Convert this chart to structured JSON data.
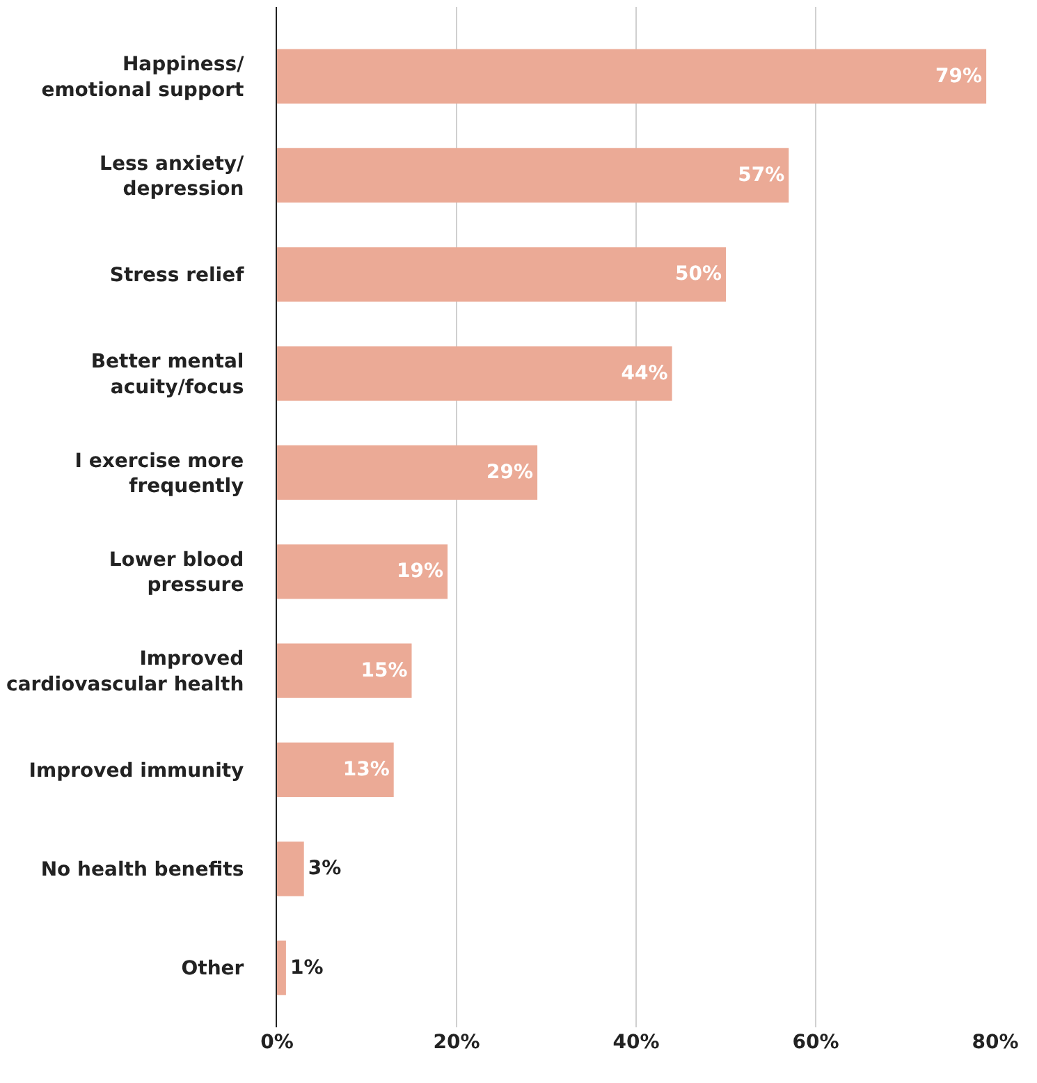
{
  "chart_data": {
    "type": "bar",
    "orientation": "horizontal",
    "categories": [
      "Happiness/\nemotional support",
      "Less anxiety/\ndepression",
      "Stress relief",
      "Better mental\nacuity/focus",
      "I exercise more\nfrequently",
      "Lower blood\npressure",
      "Improved\ncardiovascular health",
      "Improved immunity",
      "No health benefits",
      "Other"
    ],
    "values": [
      79,
      57,
      50,
      44,
      29,
      19,
      15,
      13,
      3,
      1
    ],
    "value_labels": [
      "79%",
      "57%",
      "50%",
      "44%",
      "29%",
      "19%",
      "15%",
      "13%",
      "3%",
      "1%"
    ],
    "color": "#ebaa96",
    "xlim": [
      0,
      80
    ],
    "xticks": [
      {
        "value": 0,
        "label": "0%"
      },
      {
        "value": 20,
        "label": "20%"
      },
      {
        "value": 40,
        "label": "40%"
      },
      {
        "value": 60,
        "label": "60%"
      },
      {
        "value": 80,
        "label": "80%"
      }
    ],
    "grid": "x"
  }
}
